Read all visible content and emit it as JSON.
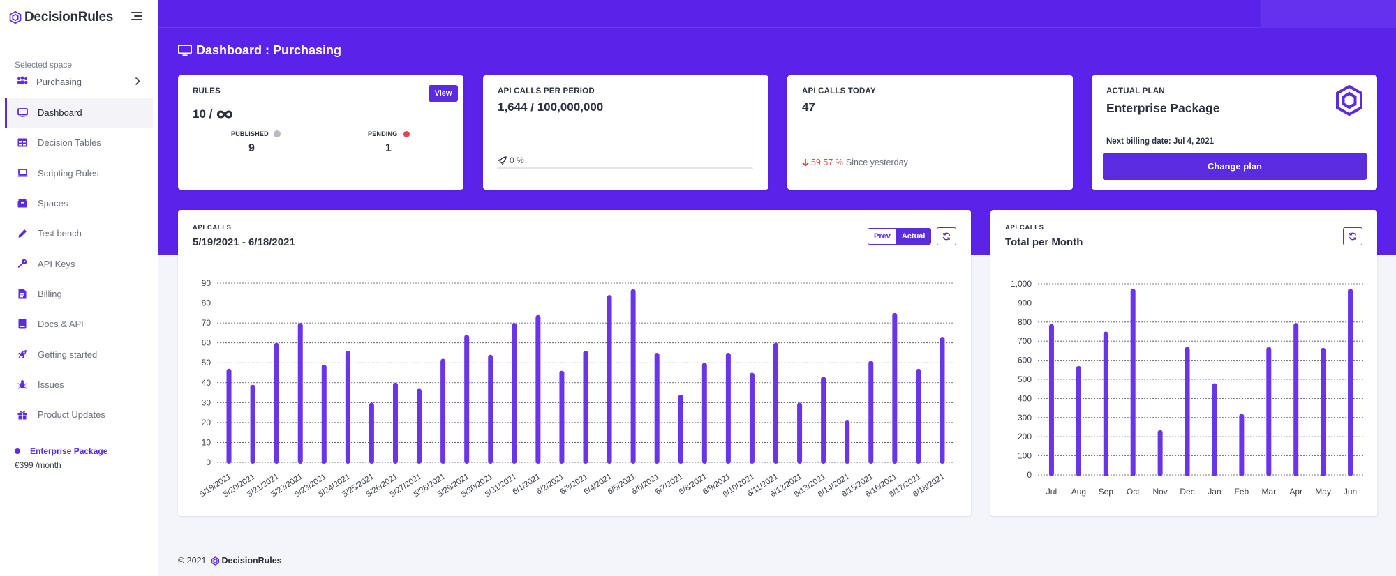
{
  "app": {
    "name": "DecisionRules"
  },
  "sidebar": {
    "space_caption": "Selected space",
    "space_name": "Purchasing",
    "items": [
      {
        "label": "Dashboard",
        "icon": "monitor-icon"
      },
      {
        "label": "Decision Tables",
        "icon": "table-icon"
      },
      {
        "label": "Scripting Rules",
        "icon": "laptop-icon"
      },
      {
        "label": "Spaces",
        "icon": "box-icon"
      },
      {
        "label": "Test bench",
        "icon": "pencil-icon"
      },
      {
        "label": "API Keys",
        "icon": "key-icon"
      },
      {
        "label": "Billing",
        "icon": "document-icon"
      },
      {
        "label": "Docs & API",
        "icon": "book-icon"
      },
      {
        "label": "Getting started",
        "icon": "rocket-icon"
      },
      {
        "label": "Issues",
        "icon": "bug-icon"
      },
      {
        "label": "Product Updates",
        "icon": "gift-icon"
      }
    ],
    "plan": {
      "name": "Enterprise Package",
      "price": "€399 /month"
    }
  },
  "page": {
    "title": "Dashboard : Purchasing"
  },
  "cards": {
    "rules": {
      "label": "RULES",
      "count": "10 /",
      "view_label": "View",
      "published_label": "PUBLISHED",
      "published_value": "9",
      "pending_label": "PENDING",
      "pending_value": "1"
    },
    "period": {
      "label": "API CALLS PER PERIOD",
      "value": "1,644 / 100,000,000",
      "percent": "0 %",
      "progress": 0.0
    },
    "today": {
      "label": "API CALLS TODAY",
      "value": "47",
      "change": "59.57 %",
      "since": "Since yesterday"
    },
    "plan": {
      "label": "ACTUAL PLAN",
      "name": "Enterprise Package",
      "billing": "Next billing date: Jul 4, 2021",
      "change_label": "Change plan"
    }
  },
  "charts_ui": {
    "daily": {
      "caption": "API CALLS",
      "title": "5/19/2021 - 6/18/2021",
      "prev_label": "Prev",
      "actual_label": "Actual"
    },
    "monthly": {
      "caption": "API CALLS",
      "title": "Total per Month"
    }
  },
  "colors": {
    "accent": "#5b2be0",
    "hero": "#5b22ea",
    "bar": "#6a35e6",
    "danger": "#e0474c",
    "pending": "#e0474c",
    "published": "#b8b9c6"
  },
  "chart_data": [
    {
      "type": "bar",
      "categories": [
        "5/19/2021",
        "5/20/2021",
        "5/21/2021",
        "5/22/2021",
        "5/23/2021",
        "5/24/2021",
        "5/25/2021",
        "5/26/2021",
        "5/27/2021",
        "5/28/2021",
        "5/29/2021",
        "5/30/2021",
        "5/31/2021",
        "6/1/2021",
        "6/2/2021",
        "6/3/2021",
        "6/4/2021",
        "6/5/2021",
        "6/6/2021",
        "6/7/2021",
        "6/8/2021",
        "6/9/2021",
        "6/10/2021",
        "6/11/2021",
        "6/12/2021",
        "6/13/2021",
        "6/14/2021",
        "6/15/2021",
        "6/16/2021",
        "6/17/2021",
        "6/18/2021"
      ],
      "values": [
        47,
        39,
        60,
        70,
        49,
        56,
        30,
        40,
        37,
        52,
        64,
        54,
        70,
        74,
        46,
        56,
        84,
        87,
        55,
        34,
        50,
        55,
        45,
        60,
        30,
        43,
        21,
        51,
        75,
        47,
        63
      ],
      "ylim": [
        0,
        90
      ],
      "yticks": [
        0,
        10,
        20,
        30,
        40,
        50,
        60,
        70,
        80,
        90
      ],
      "grid": true
    },
    {
      "type": "bar",
      "categories": [
        "Jul",
        "Aug",
        "Sep",
        "Oct",
        "Nov",
        "Dec",
        "Jan",
        "Feb",
        "Mar",
        "Apr",
        "May",
        "Jun"
      ],
      "values": [
        790,
        570,
        750,
        975,
        235,
        670,
        480,
        320,
        670,
        795,
        665,
        975
      ],
      "ylim": [
        0,
        1000
      ],
      "yticks": [
        0,
        100,
        200,
        300,
        400,
        500,
        600,
        700,
        800,
        900,
        1000
      ],
      "ytick_labels": [
        "0",
        "100",
        "200",
        "300",
        "400",
        "500",
        "600",
        "700",
        "800",
        "900",
        "1,000"
      ],
      "grid": true
    }
  ],
  "footer": {
    "copyright": "© 2021",
    "brand": "DecisionRules"
  }
}
